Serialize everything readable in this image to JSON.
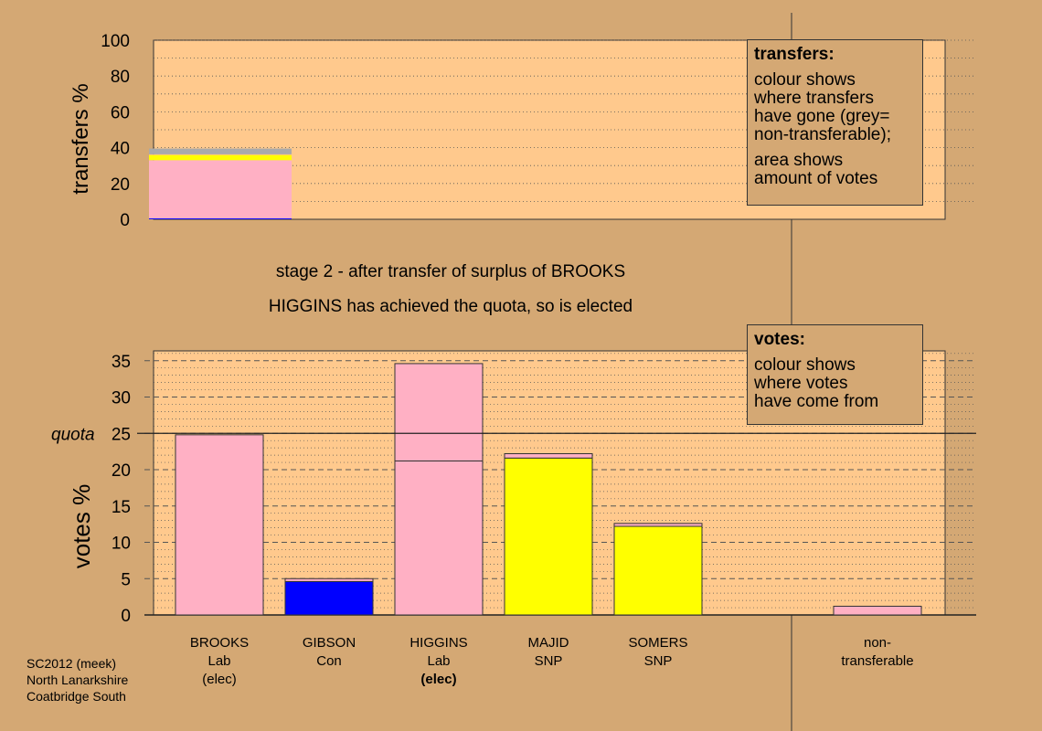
{
  "chart_data": [
    {
      "type": "bar",
      "ylabel": "transfers %",
      "ylim": [
        0,
        100
      ],
      "yticks": [
        0,
        20,
        40,
        60,
        80,
        100
      ],
      "grid": "dotted",
      "stacked_segments": [
        {
          "color": "#0000ff",
          "value": 0.5
        },
        {
          "color": "#ffb0c4",
          "value": 32.5
        },
        {
          "color": "#ffff00",
          "value": 3.0
        },
        {
          "color": "#ff9fd0",
          "value": 0.3
        },
        {
          "color": "#aaaaaa",
          "value": 3.2
        }
      ],
      "legend": {
        "title": "transfers:",
        "lines": [
          "colour shows",
          "where transfers",
          "have gone (grey=",
          "non-transferable);"
        ],
        "lines2": [
          "area shows",
          "amount of votes"
        ]
      }
    },
    {
      "type": "bar",
      "ylabel": "votes %",
      "ylim": [
        0,
        36
      ],
      "yticks": [
        0,
        5,
        10,
        15,
        20,
        25,
        30,
        35
      ],
      "quota": {
        "label": "quota",
        "value": 25
      },
      "grid": "dashed",
      "categories": [
        {
          "line1": "BROOKS",
          "line2": "Lab",
          "line3": "(elec)",
          "segments": [
            {
              "color": "#ffb0c4",
              "value": 24.8
            }
          ]
        },
        {
          "line1": "GIBSON",
          "line2": "Con",
          "line3": "",
          "segments": [
            {
              "color": "#0000ff",
              "value": 4.6
            },
            {
              "color": "#ffb0c4",
              "value": 0.4
            }
          ]
        },
        {
          "line1": "HIGGINS",
          "line2": "Lab",
          "line3": "(elec)",
          "segments": [
            {
              "color": "#ffb0c4",
              "value": 21.2
            },
            {
              "color": "#ffb0c4",
              "value": 13.4
            }
          ]
        },
        {
          "line1": "MAJID",
          "line2": "SNP",
          "line3": "",
          "segments": [
            {
              "color": "#ffff00",
              "value": 21.6
            },
            {
              "color": "#ffb0c4",
              "value": 0.6
            }
          ]
        },
        {
          "line1": "SOMERS",
          "line2": "SNP",
          "line3": "",
          "segments": [
            {
              "color": "#ffff00",
              "value": 12.2
            },
            {
              "color": "#ffb0c4",
              "value": 0.4
            }
          ]
        },
        {
          "line1": "",
          "line2": "",
          "line3": "",
          "segments": []
        },
        {
          "line1": "non-",
          "line2": "transferable",
          "line3": "",
          "segments": [
            {
              "color": "#ffb0c4",
              "value": 1.2
            }
          ]
        }
      ],
      "legend": {
        "title": "votes:",
        "lines": [
          "colour shows",
          "where votes",
          "have come from"
        ]
      }
    }
  ],
  "stage_text": {
    "line1": "stage 2 - after transfer of surplus of BROOKS",
    "line2": "HIGGINS has achieved the quota, so is elected"
  },
  "footer": {
    "line1": "SC2012 (meek)",
    "line2": "North Lanarkshire",
    "line3": "Coatbridge South"
  },
  "colors": {
    "background": "#d4a874",
    "plot_fill": "#ffc98d"
  }
}
